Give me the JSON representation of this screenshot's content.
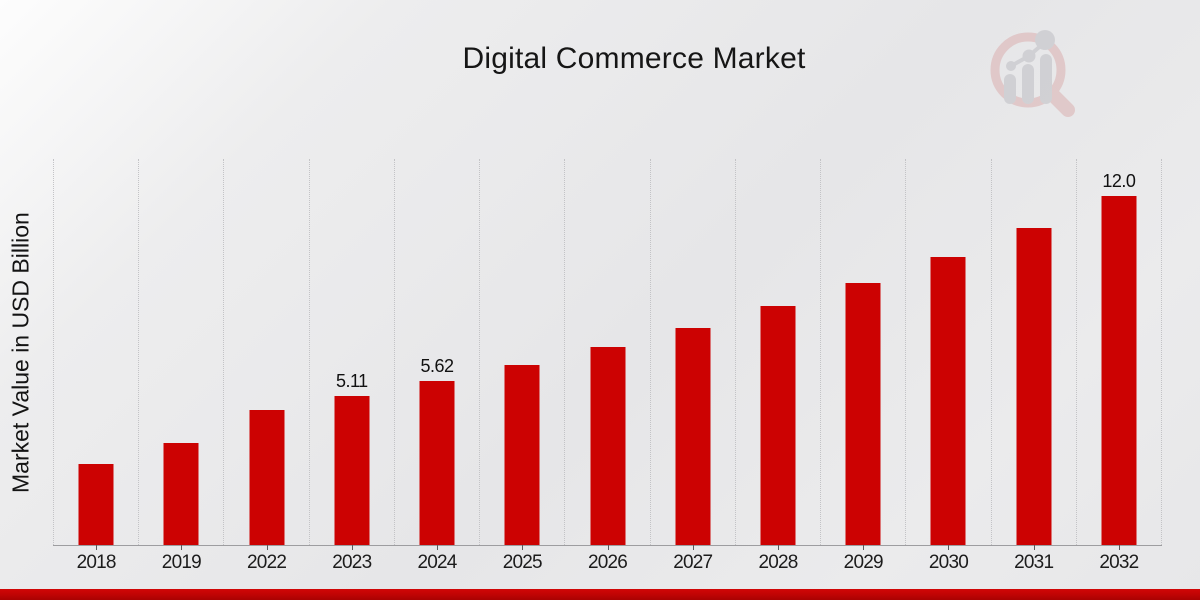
{
  "header": {
    "title": "Digital Commerce Market"
  },
  "watermark": {
    "name": "magnifier-bar-chart-logo",
    "ring_color": "#d9a8a8",
    "glyph_color": "#b9b9bf"
  },
  "colors": {
    "bar": "#cc0202",
    "footer_strip": "#c20404",
    "gridline": "#c3c3c6",
    "axis_line": "#9d9da0",
    "text": "#161616"
  },
  "chart_data": {
    "type": "bar",
    "title": "Digital Commerce Market",
    "xlabel": "",
    "ylabel": "Market Value in USD Billion",
    "categories": [
      "2018",
      "2019",
      "2022",
      "2023",
      "2024",
      "2025",
      "2026",
      "2027",
      "2028",
      "2029",
      "2030",
      "2031",
      "2032"
    ],
    "values": [
      2.8,
      3.5,
      4.64,
      5.11,
      5.62,
      6.18,
      6.79,
      7.46,
      8.2,
      9.01,
      9.9,
      10.9,
      12.0
    ],
    "point_labels": [
      "",
      "",
      "",
      "5.11",
      "5.62",
      "",
      "",
      "",
      "",
      "",
      "",
      "",
      "12.0"
    ],
    "ylim": [
      0,
      13.3
    ],
    "grid": "vertical-dotted",
    "legend": "none",
    "bar_color": "#cc0202"
  }
}
